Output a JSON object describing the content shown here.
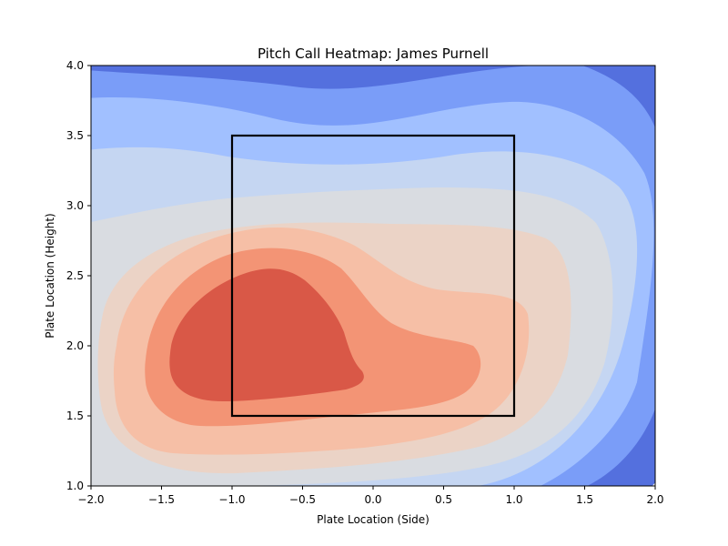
{
  "chart_data": {
    "type": "heatmap",
    "subtype": "filled-contour",
    "title": "Pitch Call Heatmap: James Purnell",
    "xlabel": "Plate Location (Side)",
    "ylabel": "Plate Location (Height)",
    "xlim": [
      -2.0,
      2.0
    ],
    "ylim": [
      1.0,
      4.0
    ],
    "x_ticks": [
      -2.0,
      -1.5,
      -1.0,
      -0.5,
      0.0,
      0.5,
      1.0,
      1.5,
      2.0
    ],
    "y_ticks": [
      1.0,
      1.5,
      2.0,
      2.5,
      3.0,
      3.5,
      4.0
    ],
    "x_tick_labels": [
      "−2.0",
      "−1.5",
      "−1.0",
      "−0.5",
      "0.0",
      "0.5",
      "1.0",
      "1.5",
      "2.0"
    ],
    "y_tick_labels": [
      "1.0",
      "1.5",
      "2.0",
      "2.5",
      "3.0",
      "3.5",
      "4.0"
    ],
    "colormap": "coolwarm",
    "level_colors": [
      "#ffffff",
      "#5470de",
      "#7a9df8",
      "#a1c0ff",
      "#c5d6f2",
      "#d9dce1",
      "#ebd3c6",
      "#f6bfa6",
      "#f39475",
      "#d95847"
    ],
    "hotspot": {
      "x": -0.65,
      "y": 2.0
    },
    "grid": false,
    "strike_zone": {
      "x": [
        -1.0,
        1.0
      ],
      "y": [
        1.5,
        3.5
      ],
      "color": "#000000"
    }
  }
}
